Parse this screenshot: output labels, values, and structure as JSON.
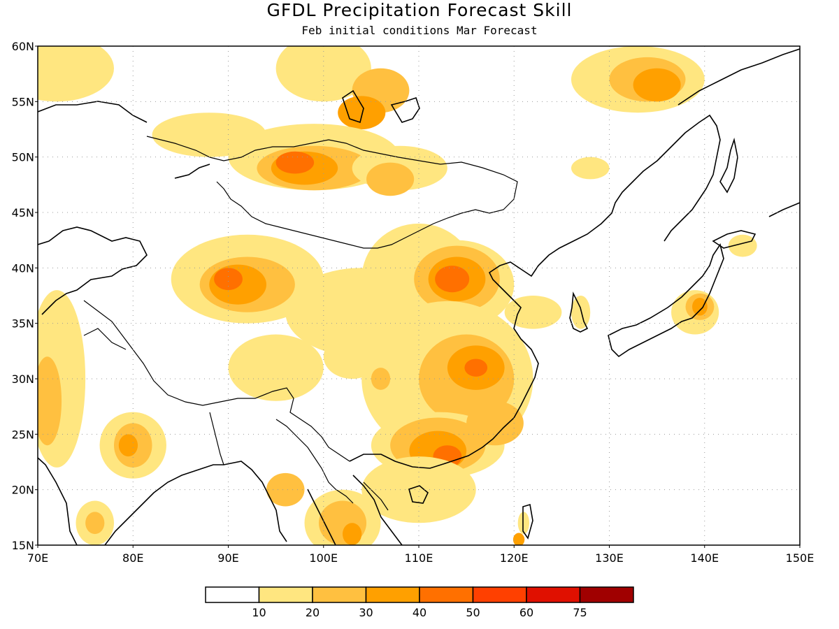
{
  "title": "GFDL Precipitation Forecast Skill",
  "subtitle": "Feb initial conditions  Mar Forecast",
  "map": {
    "lon_range": [
      70,
      150
    ],
    "lat_range": [
      15,
      60
    ],
    "lat_labels": [
      "15N",
      "20N",
      "25N",
      "30N",
      "35N",
      "40N",
      "45N",
      "50N",
      "55N",
      "60N"
    ],
    "lon_labels": [
      "70E",
      "80E",
      "90E",
      "100E",
      "110E",
      "120E",
      "130E",
      "140E",
      "150E"
    ],
    "gridlines": "dotted"
  },
  "legend": {
    "bins": [
      "",
      "10",
      "20",
      "30",
      "40",
      "50",
      "60",
      "75"
    ],
    "colors": [
      "#ffffff",
      "#ffe680",
      "#ffc040",
      "#ffa000",
      "#ff7000",
      "#ff4000",
      "#e01000",
      "#a00000"
    ]
  },
  "skill_regions": [
    {
      "level": 1,
      "lon": 71,
      "lat": 57
    },
    {
      "level": 2,
      "lon": 92,
      "lat": 39
    },
    {
      "level": 3,
      "lon": 91,
      "lat": 38.5
    },
    {
      "level": 2,
      "lon": 113,
      "lat": 39
    },
    {
      "level": 3,
      "lon": 114,
      "lat": 39
    },
    {
      "level": 4,
      "lon": 114,
      "lat": 39
    },
    {
      "level": 2,
      "lon": 98,
      "lat": 49
    },
    {
      "level": 3,
      "lon": 99,
      "lat": 49
    },
    {
      "level": 2,
      "lon": 134,
      "lat": 57
    },
    {
      "level": 3,
      "lon": 135,
      "lat": 57
    },
    {
      "level": 2,
      "lon": 112,
      "lat": 24
    },
    {
      "level": 3,
      "lon": 112,
      "lat": 23.5
    },
    {
      "level": 2,
      "lon": 115,
      "lat": 31
    },
    {
      "level": 3,
      "lon": 116,
      "lat": 31
    },
    {
      "level": 2,
      "lon": 139,
      "lat": 36
    },
    {
      "level": 3,
      "lon": 139.5,
      "lat": 36.5
    },
    {
      "level": 2,
      "lon": 80,
      "lat": 24
    },
    {
      "level": 2,
      "lon": 96,
      "lat": 20
    },
    {
      "level": 2,
      "lon": 103,
      "lat": 18
    },
    {
      "level": 2,
      "lon": 104,
      "lat": 54
    }
  ]
}
